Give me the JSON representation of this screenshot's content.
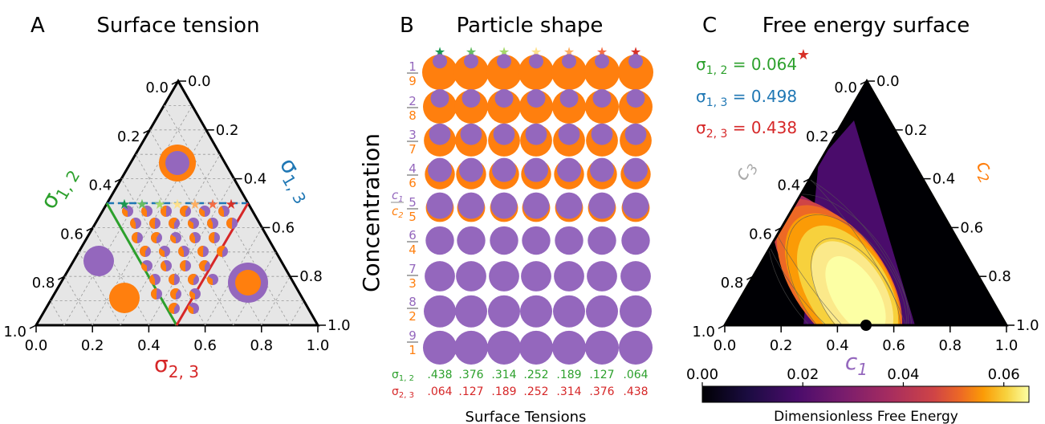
{
  "colors": {
    "purple": "#9467bd",
    "orange": "#ff7f0e",
    "green": "#2ca02c",
    "blue": "#1f77b4",
    "red": "#d62728",
    "panel_gray": "#e6e6e6",
    "c3_gray": "#aaaaaa",
    "stars": [
      "#1a9850",
      "#66bd63",
      "#a6d96a",
      "#fee08b",
      "#fdae61",
      "#f46d43",
      "#d73027"
    ]
  },
  "panel_a": {
    "letter": "A",
    "title": "Surface tension",
    "bottom_ticks": [
      "0.0",
      "0.2",
      "0.4",
      "0.6",
      "0.8",
      "1.0"
    ],
    "left_ticks": [
      "1.0",
      "0.8",
      "0.6",
      "0.4",
      "0.2",
      "0.0"
    ],
    "right_ticks": [
      "0.0",
      "0.2",
      "0.4",
      "0.6",
      "0.8",
      "1.0"
    ],
    "left_label": "σ",
    "left_label_sub": "1, 2",
    "right_label": "σ",
    "right_label_sub": "1, 3",
    "bottom_label": "σ",
    "bottom_label_sub": "2, 3"
  },
  "panel_b": {
    "letter": "B",
    "title": "Particle shape",
    "ylabel": "Concentration",
    "ratio_top": "c",
    "ratio_top_sub": "1",
    "ratio_bottom": "c",
    "ratio_bottom_sub": "2",
    "fractions": [
      [
        "1",
        "9"
      ],
      [
        "2",
        "8"
      ],
      [
        "3",
        "7"
      ],
      [
        "4",
        "6"
      ],
      [
        "5",
        "5"
      ],
      [
        "6",
        "4"
      ],
      [
        "7",
        "3"
      ],
      [
        "8",
        "2"
      ],
      [
        "9",
        "1"
      ]
    ],
    "sigma12_label": "σ",
    "sigma12_sub": "1, 2",
    "sigma23_label": "σ",
    "sigma23_sub": "2, 3",
    "xlabel": "Surface Tensions"
  },
  "panel_c": {
    "letter": "C",
    "title": "Free energy surface",
    "eq_labels": [
      {
        "sym": "σ",
        "sub": "1, 2",
        "text": " = 0.064"
      },
      {
        "sym": "σ",
        "sub": "1, 3",
        "text": " = 0.498"
      },
      {
        "sym": "σ",
        "sub": "2, 3",
        "text": " = 0.438"
      }
    ],
    "bottom_ticks": [
      "0.0",
      "0.2",
      "0.4",
      "0.6",
      "0.8",
      "1.0"
    ],
    "left_ticks": [
      "1.0",
      "0.8",
      "0.6",
      "0.4",
      "0.2",
      "0.0"
    ],
    "right_ticks": [
      "0.0",
      "0.2",
      "0.4",
      "0.6",
      "0.8",
      "1.0"
    ],
    "c1_label": "c",
    "c1_sub": "1",
    "c2_label": "c",
    "c2_sub": "2",
    "c3_label": "c",
    "c3_sub": "3",
    "colorbar_ticks": [
      "0.00",
      "0.02",
      "0.04",
      "0.06"
    ],
    "colorbar_label": "Dimensionless Free Energy"
  },
  "chart_data": [
    {
      "type": "scatter",
      "panel": "A",
      "title": "Surface tension",
      "xlabel": "σ2,3",
      "axes": [
        "σ1,2",
        "σ1,3",
        "σ2,3"
      ],
      "xlim": [
        0,
        1
      ],
      "star_series_line": {
        "sigma_1_3": 0.5,
        "color": "blue"
      },
      "boundary_lines": [
        {
          "color": "green",
          "from": [
            0.25,
            0.5
          ],
          "to": [
            0.5,
            0.0
          ]
        },
        {
          "color": "red",
          "from": [
            0.75,
            0.5
          ],
          "to": [
            0.5,
            0.0
          ]
        }
      ]
    },
    {
      "type": "table",
      "panel": "B",
      "title": "Particle shape",
      "ylabel": "Concentration",
      "xlabel": "Surface Tensions",
      "rows": [
        "1/9",
        "2/8",
        "3/7",
        "4/6",
        "5/5",
        "6/4",
        "7/3",
        "8/2",
        "9/1"
      ],
      "sigma_1_2": [
        ".438",
        ".376",
        ".314",
        ".252",
        ".189",
        ".127",
        ".064"
      ],
      "sigma_2_3": [
        ".064",
        ".127",
        ".189",
        ".252",
        ".314",
        ".376",
        ".438"
      ]
    },
    {
      "type": "heatmap",
      "panel": "C",
      "title": "Free energy surface",
      "sigma_1_2": 0.064,
      "sigma_1_3": 0.498,
      "sigma_2_3": 0.438,
      "xlabel": "c1",
      "xlim": [
        0,
        1
      ],
      "minimum_marker": {
        "c1": 0.5,
        "c2": 0.0
      },
      "colorbar": {
        "label": "Dimensionless Free Energy",
        "range": [
          0.0,
          0.065
        ],
        "ticks": [
          0.0,
          0.02,
          0.04,
          0.06
        ],
        "colormap": "inferno"
      }
    }
  ]
}
